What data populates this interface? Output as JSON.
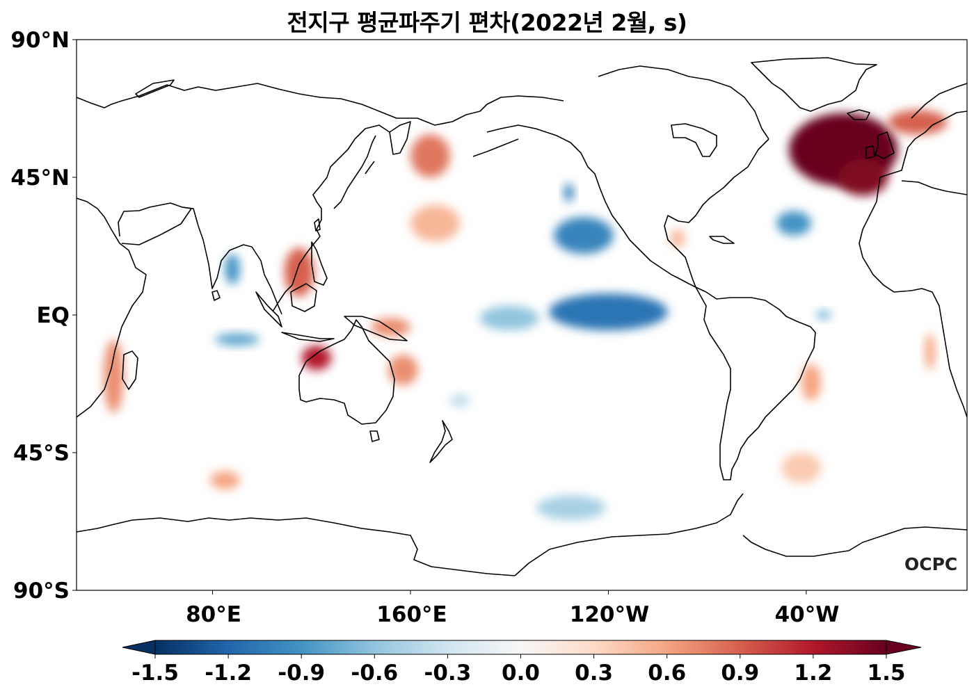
{
  "title": "전지구 평균파주기 편차(2022년 2월, s)",
  "logo": "OCPC",
  "map": {
    "projection": "PlateCarree",
    "central_longitude": 205,
    "lon_range": [
      25,
      385
    ],
    "lat_range": [
      -90,
      90
    ],
    "variable": "Mean wave period anomaly",
    "units": "s"
  },
  "axes": {
    "y_ticks": [
      {
        "lat": 90,
        "label": "90°N"
      },
      {
        "lat": 45,
        "label": "45°N"
      },
      {
        "lat": 0,
        "label": "EQ"
      },
      {
        "lat": -45,
        "label": "45°S"
      },
      {
        "lat": -90,
        "label": "90°S"
      }
    ],
    "x_ticks": [
      {
        "lon": 80,
        "label": "80°E"
      },
      {
        "lon": 160,
        "label": "160°E"
      },
      {
        "lon": 240,
        "label": "120°W"
      },
      {
        "lon": 320,
        "label": "40°W"
      }
    ]
  },
  "colorbar": {
    "cmap": "RdBu_r",
    "vmin": -1.5,
    "vmax": 1.5,
    "extend": "both",
    "ticks": [
      "-1.5",
      "-1.2",
      "-0.9",
      "-0.6",
      "-0.3",
      "0.0",
      "0.3",
      "0.6",
      "0.9",
      "1.2",
      "1.5"
    ],
    "colors": [
      "#053061",
      "#2166ac",
      "#4393c3",
      "#92c5de",
      "#d1e5f0",
      "#f7f7f7",
      "#fddbc7",
      "#f4a582",
      "#d6604d",
      "#b2182b",
      "#67001f"
    ]
  },
  "anomaly_regions": [
    {
      "name": "north-atlantic",
      "lon": 335,
      "lat": 54,
      "rlon": 22,
      "rlat": 12,
      "value": 1.5
    },
    {
      "name": "north-atlantic-south",
      "lon": 343,
      "lat": 45,
      "rlon": 10,
      "rlat": 6,
      "value": 1.4
    },
    {
      "name": "norwegian-sea",
      "lon": 5,
      "lat": 63,
      "rlon": 12,
      "rlat": 4,
      "value": 0.9
    },
    {
      "name": "central-atlantic-neg",
      "lon": 315,
      "lat": 30,
      "rlon": 7,
      "rlat": 4,
      "value": -0.9
    },
    {
      "name": "east-pacific-neg",
      "lon": 230,
      "lat": 26,
      "rlon": 12,
      "rlat": 6,
      "value": -1.0
    },
    {
      "name": "equatorial-pacific-neg",
      "lon": 240,
      "lat": 1,
      "rlon": 24,
      "rlat": 6,
      "value": -1.1
    },
    {
      "name": "equatorial-pacific-neg-west",
      "lon": 200,
      "lat": -1,
      "rlon": 12,
      "rlat": 4,
      "value": -0.6
    },
    {
      "name": "kamchatka-pos",
      "lon": 168,
      "lat": 52,
      "rlon": 8,
      "rlat": 7,
      "value": 0.8
    },
    {
      "name": "nw-pacific-pos",
      "lon": 170,
      "lat": 30,
      "rlon": 10,
      "rlat": 6,
      "value": 0.5
    },
    {
      "name": "scs-pos",
      "lon": 115,
      "lat": 14,
      "rlon": 6,
      "rlat": 8,
      "value": 0.9
    },
    {
      "name": "bay-of-bengal-neg",
      "lon": 88,
      "lat": 15,
      "rlon": 3,
      "rlat": 5,
      "value": -0.9
    },
    {
      "name": "indian-ocean-neg",
      "lon": 90,
      "lat": -8,
      "rlon": 9,
      "rlat": 2,
      "value": -0.8
    },
    {
      "name": "nw-australia-pos",
      "lon": 122,
      "lat": -14,
      "rlon": 6,
      "rlat": 4,
      "value": 1.2
    },
    {
      "name": "coral-sea-pos",
      "lon": 157,
      "lat": -18,
      "rlon": 6,
      "rlat": 5,
      "value": 0.7
    },
    {
      "name": "png-pos",
      "lon": 152,
      "lat": -4,
      "rlon": 8,
      "rlat": 3,
      "value": 0.7
    },
    {
      "name": "mozambique-pos",
      "lon": 40,
      "lat": -20,
      "rlon": 4,
      "rlat": 12,
      "value": 0.7
    },
    {
      "name": "south-indian-pos",
      "lon": 85,
      "lat": -54,
      "rlon": 6,
      "rlat": 3,
      "value": 0.6
    },
    {
      "name": "southern-ocean-neg",
      "lon": 225,
      "lat": -63,
      "rlon": 14,
      "rlat": 4,
      "value": -0.5
    },
    {
      "name": "south-atlantic-pos",
      "lon": 318,
      "lat": -50,
      "rlon": 8,
      "rlat": 5,
      "value": 0.4
    },
    {
      "name": "brazil-pos",
      "lon": 322,
      "lat": -22,
      "rlon": 4,
      "rlat": 6,
      "value": 0.6
    },
    {
      "name": "namibia-pos",
      "lon": 10,
      "lat": -12,
      "rlon": 2,
      "rlat": 6,
      "value": 0.6
    },
    {
      "name": "gulf-of-mexico-pos",
      "lon": 268,
      "lat": 25,
      "rlon": 3,
      "rlat": 3,
      "value": 0.5
    },
    {
      "name": "california-neg",
      "lon": 224,
      "lat": 40,
      "rlon": 2,
      "rlat": 3,
      "value": -1.0
    },
    {
      "name": "equatorial-atlantic-neg",
      "lon": 327,
      "lat": 0,
      "rlon": 3,
      "rlat": 1.5,
      "value": -0.7
    },
    {
      "name": "tasman-neg",
      "lon": 180,
      "lat": -28,
      "rlon": 4,
      "rlat": 2,
      "value": -0.4
    }
  ]
}
